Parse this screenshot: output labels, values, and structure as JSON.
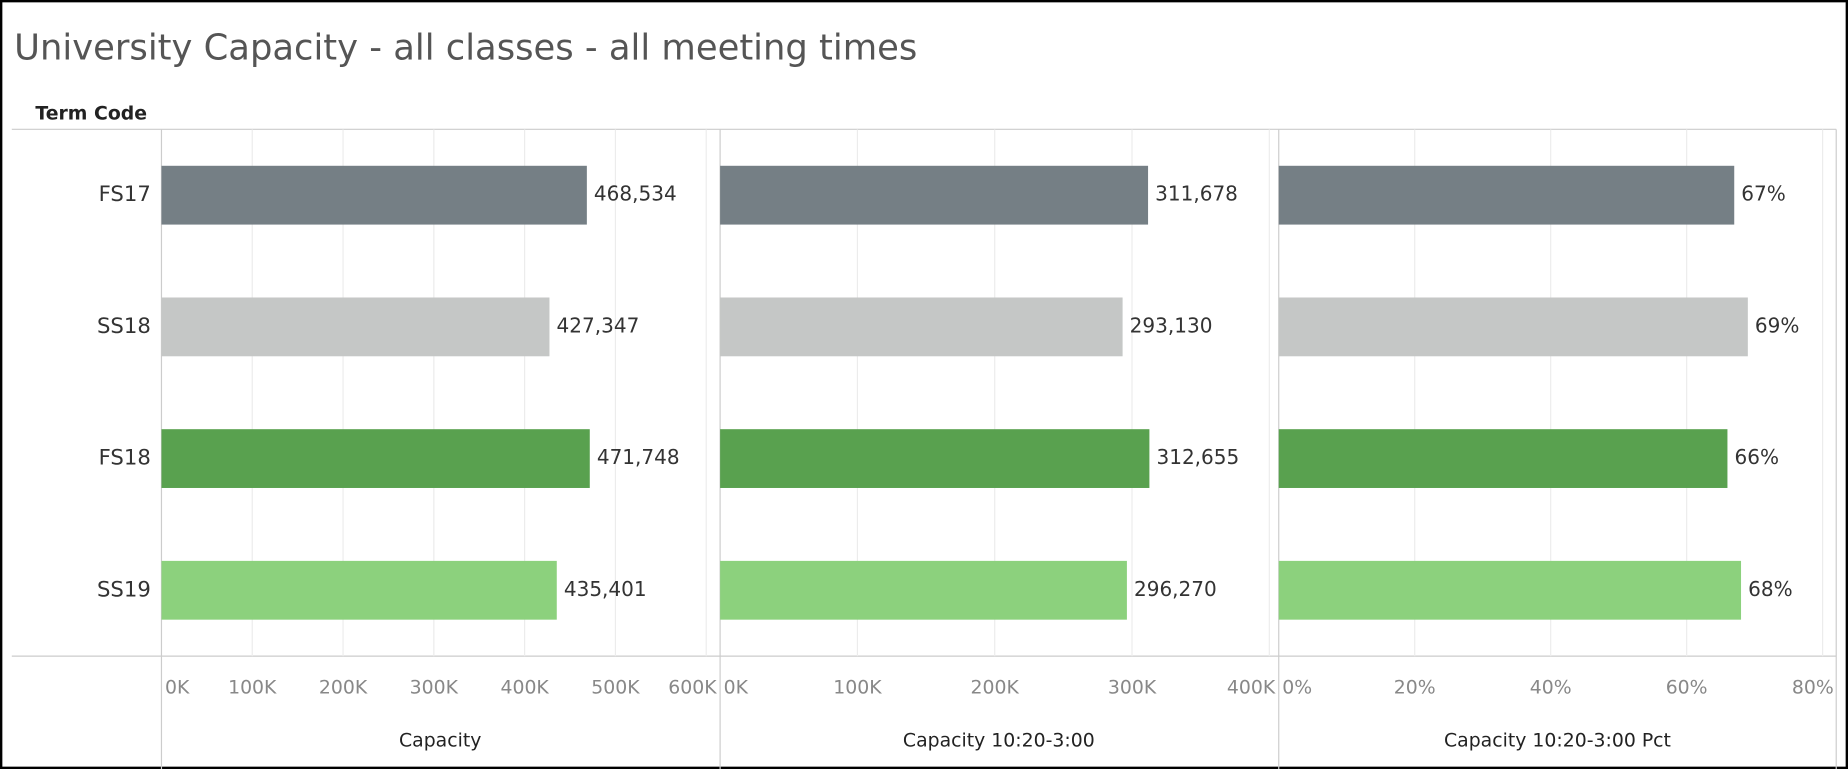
{
  "chart_data": {
    "type": "bar",
    "title": "University Capacity - all classes - all meeting times",
    "ylabel": "Term Code",
    "categories": [
      "FS17",
      "SS18",
      "FS18",
      "SS19"
    ],
    "colors": [
      "#757f85",
      "#c5c7c6",
      "#59a14f",
      "#8cd17d"
    ],
    "series": [
      {
        "name": "Capacity",
        "values": [
          468534,
          427347,
          471748,
          435401
        ],
        "value_labels": [
          "468,534",
          "427,347",
          "471,748",
          "435,401"
        ],
        "xlim": [
          0,
          614000
        ],
        "xticks": [
          {
            "value": 0,
            "label": "0K"
          },
          {
            "value": 100000,
            "label": "100K"
          },
          {
            "value": 200000,
            "label": "200K"
          },
          {
            "value": 300000,
            "label": "300K"
          },
          {
            "value": 400000,
            "label": "400K"
          },
          {
            "value": 500000,
            "label": "500K"
          },
          {
            "value": 600000,
            "label": "600K"
          }
        ]
      },
      {
        "name": "Capacity 10:20-3:00",
        "values": [
          311678,
          293130,
          312655,
          296270
        ],
        "value_labels": [
          "311,678",
          "293,130",
          "312,655",
          "296,270"
        ],
        "xlim": [
          0,
          406000
        ],
        "xticks": [
          {
            "value": 0,
            "label": "0K"
          },
          {
            "value": 100000,
            "label": "100K"
          },
          {
            "value": 200000,
            "label": "200K"
          },
          {
            "value": 300000,
            "label": "300K"
          },
          {
            "value": 400000,
            "label": "400K"
          }
        ]
      },
      {
        "name": "Capacity 10:20-3:00 Pct",
        "values": [
          67,
          69,
          66,
          68
        ],
        "value_labels": [
          "67%",
          "69%",
          "66%",
          "68%"
        ],
        "xlim": [
          0,
          82
        ],
        "xticks": [
          {
            "value": 0,
            "label": "0%"
          },
          {
            "value": 20,
            "label": "20%"
          },
          {
            "value": 40,
            "label": "40%"
          },
          {
            "value": 60,
            "label": "60%"
          },
          {
            "value": 80,
            "label": "80%"
          }
        ]
      }
    ]
  }
}
